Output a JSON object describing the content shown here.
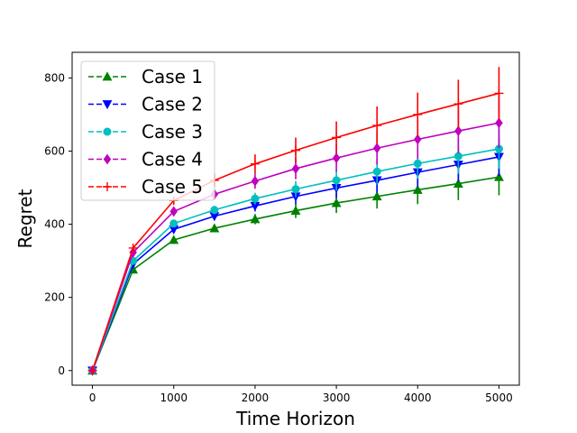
{
  "chart_data": {
    "type": "line",
    "title": "",
    "xlabel": "Time Horizon",
    "ylabel": "Regret",
    "xlim": [
      -250,
      5250
    ],
    "ylim": [
      -40,
      870
    ],
    "x_ticks": [
      0,
      1000,
      2000,
      3000,
      4000,
      5000
    ],
    "y_ticks": [
      0,
      200,
      400,
      600,
      800
    ],
    "grid": false,
    "legend_position": "top-left",
    "x": [
      0,
      500,
      1000,
      1500,
      2000,
      2500,
      3000,
      3500,
      4000,
      4500,
      5000
    ],
    "series": [
      {
        "name": "Case 1",
        "color": "#008000",
        "marker": "triangle-up",
        "values": [
          0,
          276,
          357,
          389,
          414,
          437,
          458,
          476,
          494,
          511,
          529
        ],
        "errors": [
          0,
          4,
          6,
          9,
          14,
          20,
          27,
          33,
          39,
          45,
          50
        ]
      },
      {
        "name": "Case 2",
        "color": "#0000ff",
        "marker": "triangle-down",
        "values": [
          0,
          291,
          386,
          422,
          450,
          476,
          499,
          520,
          542,
          563,
          584
        ],
        "errors": [
          0,
          4,
          7,
          10,
          15,
          21,
          27,
          34,
          40,
          46,
          52
        ]
      },
      {
        "name": "Case 3",
        "color": "#00bfbf",
        "marker": "circle",
        "values": [
          0,
          300,
          402,
          439,
          470,
          496,
          520,
          544,
          566,
          586,
          606
        ],
        "errors": [
          0,
          4,
          7,
          11,
          16,
          22,
          28,
          35,
          41,
          48,
          54
        ]
      },
      {
        "name": "Case 4",
        "color": "#bf00bf",
        "marker": "diamond",
        "values": [
          0,
          323,
          435,
          482,
          518,
          552,
          581,
          608,
          632,
          655,
          677
        ],
        "errors": [
          0,
          5,
          9,
          14,
          21,
          29,
          37,
          45,
          53,
          61,
          69
        ]
      },
      {
        "name": "Case 5",
        "color": "#ff0000",
        "marker": "plus",
        "values": [
          0,
          335,
          465,
          520,
          565,
          602,
          637,
          670,
          700,
          729,
          758
        ],
        "errors": [
          0,
          6,
          11,
          18,
          26,
          35,
          44,
          52,
          60,
          66,
          72
        ]
      }
    ]
  }
}
